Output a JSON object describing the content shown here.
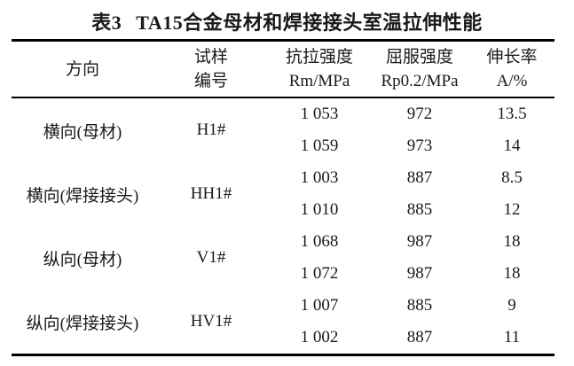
{
  "caption": {
    "label": "表3",
    "text": "TA15合金母材和焊接接头室温拉伸性能"
  },
  "table": {
    "header": {
      "direction": "方向",
      "sample_line1": "试样",
      "sample_line2": "编号",
      "rm_line1": "抗拉强度",
      "rm_line2": "Rm/MPa",
      "rp_line1": "屈服强度",
      "rp_line2": "Rp0.2/MPa",
      "a_line1": "伸长率",
      "a_line2": "A/%"
    },
    "groups": [
      {
        "direction": "横向(母材)",
        "sample": "H1#",
        "rows": [
          {
            "rm": "1 053",
            "rp": "972",
            "a": "13.5"
          },
          {
            "rm": "1 059",
            "rp": "973",
            "a": "14"
          }
        ]
      },
      {
        "direction": "横向(焊接接头)",
        "sample": "HH1#",
        "rows": [
          {
            "rm": "1 003",
            "rp": "887",
            "a": "8.5"
          },
          {
            "rm": "1 010",
            "rp": "885",
            "a": "12"
          }
        ]
      },
      {
        "direction": "纵向(母材)",
        "sample": "V1#",
        "rows": [
          {
            "rm": "1 068",
            "rp": "987",
            "a": "18"
          },
          {
            "rm": "1 072",
            "rp": "987",
            "a": "18"
          }
        ]
      },
      {
        "direction": "纵向(焊接接头)",
        "sample": "HV1#",
        "rows": [
          {
            "rm": "1 007",
            "rp": "885",
            "a": "9"
          },
          {
            "rm": "1 002",
            "rp": "887",
            "a": "11"
          }
        ]
      }
    ],
    "text_color": "#1a1a1a",
    "rule_color": "#000000"
  }
}
